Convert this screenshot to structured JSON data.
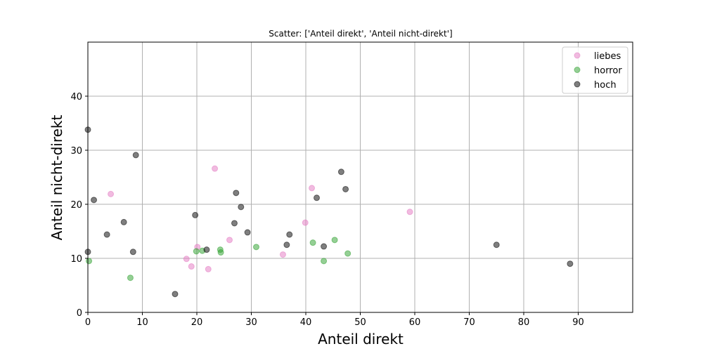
{
  "chart_data": {
    "type": "scatter",
    "title": "Scatter: ['Anteil direkt', 'Anteil nicht-direkt']",
    "xlabel": "Anteil direkt",
    "ylabel": "Anteil nicht-direkt",
    "xlim": [
      0,
      100
    ],
    "ylim": [
      0,
      50
    ],
    "xticks": [
      0,
      10,
      20,
      30,
      40,
      50,
      60,
      70,
      80,
      90
    ],
    "yticks": [
      0,
      10,
      20,
      30,
      40
    ],
    "grid": true,
    "legend_position": "top-right",
    "series": [
      {
        "name": "liebes",
        "color": "#e377c2",
        "points": [
          {
            "x": 4.2,
            "y": 21.9
          },
          {
            "x": 18.1,
            "y": 9.9
          },
          {
            "x": 19.0,
            "y": 8.5
          },
          {
            "x": 20.1,
            "y": 12.1
          },
          {
            "x": 22.1,
            "y": 8.0
          },
          {
            "x": 23.3,
            "y": 26.6
          },
          {
            "x": 26.0,
            "y": 13.4
          },
          {
            "x": 35.8,
            "y": 10.7
          },
          {
            "x": 39.9,
            "y": 16.6
          },
          {
            "x": 41.1,
            "y": 23.0
          },
          {
            "x": 59.1,
            "y": 18.6
          }
        ]
      },
      {
        "name": "horror",
        "color": "#2ca02c",
        "points": [
          {
            "x": 0.2,
            "y": 9.5
          },
          {
            "x": 7.8,
            "y": 6.4
          },
          {
            "x": 19.9,
            "y": 11.3
          },
          {
            "x": 21.0,
            "y": 11.4
          },
          {
            "x": 24.3,
            "y": 11.6
          },
          {
            "x": 24.4,
            "y": 11.1
          },
          {
            "x": 30.9,
            "y": 12.1
          },
          {
            "x": 41.3,
            "y": 12.9
          },
          {
            "x": 43.3,
            "y": 9.5
          },
          {
            "x": 45.3,
            "y": 13.4
          },
          {
            "x": 47.7,
            "y": 10.9
          }
        ]
      },
      {
        "name": "hoch",
        "color": "#000000",
        "points": [
          {
            "x": 0.0,
            "y": 33.8
          },
          {
            "x": 0.0,
            "y": 11.2
          },
          {
            "x": 1.1,
            "y": 20.8
          },
          {
            "x": 3.5,
            "y": 14.4
          },
          {
            "x": 6.6,
            "y": 16.7
          },
          {
            "x": 8.3,
            "y": 11.2
          },
          {
            "x": 8.8,
            "y": 29.1
          },
          {
            "x": 16.0,
            "y": 3.4
          },
          {
            "x": 19.7,
            "y": 18.0
          },
          {
            "x": 21.8,
            "y": 11.6
          },
          {
            "x": 26.9,
            "y": 16.5
          },
          {
            "x": 27.2,
            "y": 22.1
          },
          {
            "x": 28.1,
            "y": 19.5
          },
          {
            "x": 29.3,
            "y": 14.8
          },
          {
            "x": 36.5,
            "y": 12.5
          },
          {
            "x": 37.0,
            "y": 14.4
          },
          {
            "x": 42.0,
            "y": 21.2
          },
          {
            "x": 43.3,
            "y": 12.2
          },
          {
            "x": 46.5,
            "y": 26.0
          },
          {
            "x": 47.3,
            "y": 22.8
          },
          {
            "x": 75.0,
            "y": 12.5
          },
          {
            "x": 88.5,
            "y": 9.0
          }
        ]
      }
    ]
  }
}
